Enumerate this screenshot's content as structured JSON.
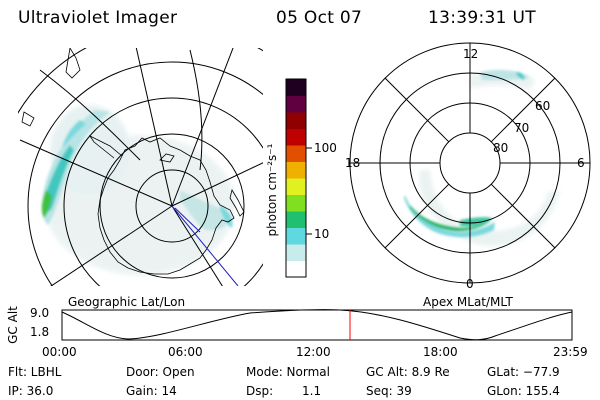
{
  "header": {
    "instrument": "Ultraviolet Imager",
    "date": "05 Oct 07",
    "time": "13:39:31 UT"
  },
  "geo_map": {
    "caption": "Geographic Lat/Lon"
  },
  "colorbar": {
    "unit_label": "photon cm⁻²s⁻¹",
    "tick_100": "100",
    "tick_10": "10",
    "colors": [
      "#ffffff",
      "#c8ecec",
      "#60d8e0",
      "#20c070",
      "#80e020",
      "#e0f020",
      "#f0b000",
      "#e05000",
      "#c00000",
      "#900000",
      "#600040",
      "#200020"
    ]
  },
  "polar_map": {
    "caption": "Apex MLat/MLT",
    "mlt_top": "12",
    "mlt_left": "18",
    "mlt_right": "6",
    "mlt_bottom": "0",
    "lat_60": "60",
    "lat_70": "70",
    "lat_80": "80"
  },
  "altitude_plot": {
    "ylabel": "GC Alt",
    "ymax": "9.0",
    "ymin": "1.8",
    "xticks": [
      "00:00",
      "06:00",
      "12:00",
      "18:00",
      "23:59"
    ],
    "marker_color": "#ff0000"
  },
  "info": {
    "flt": "Flt: LBHL",
    "ip": "IP: 36.0",
    "door": "Door: Open",
    "gain": "Gain: 14",
    "mode": "Mode: Normal",
    "dsp_label": "Dsp:",
    "dsp_value": "1.1",
    "gc_alt": "GC Alt: 8.9 Re",
    "seq": "Seq: 39",
    "glat": "GLat: −77.9",
    "glon": "GLon: 155.4"
  }
}
